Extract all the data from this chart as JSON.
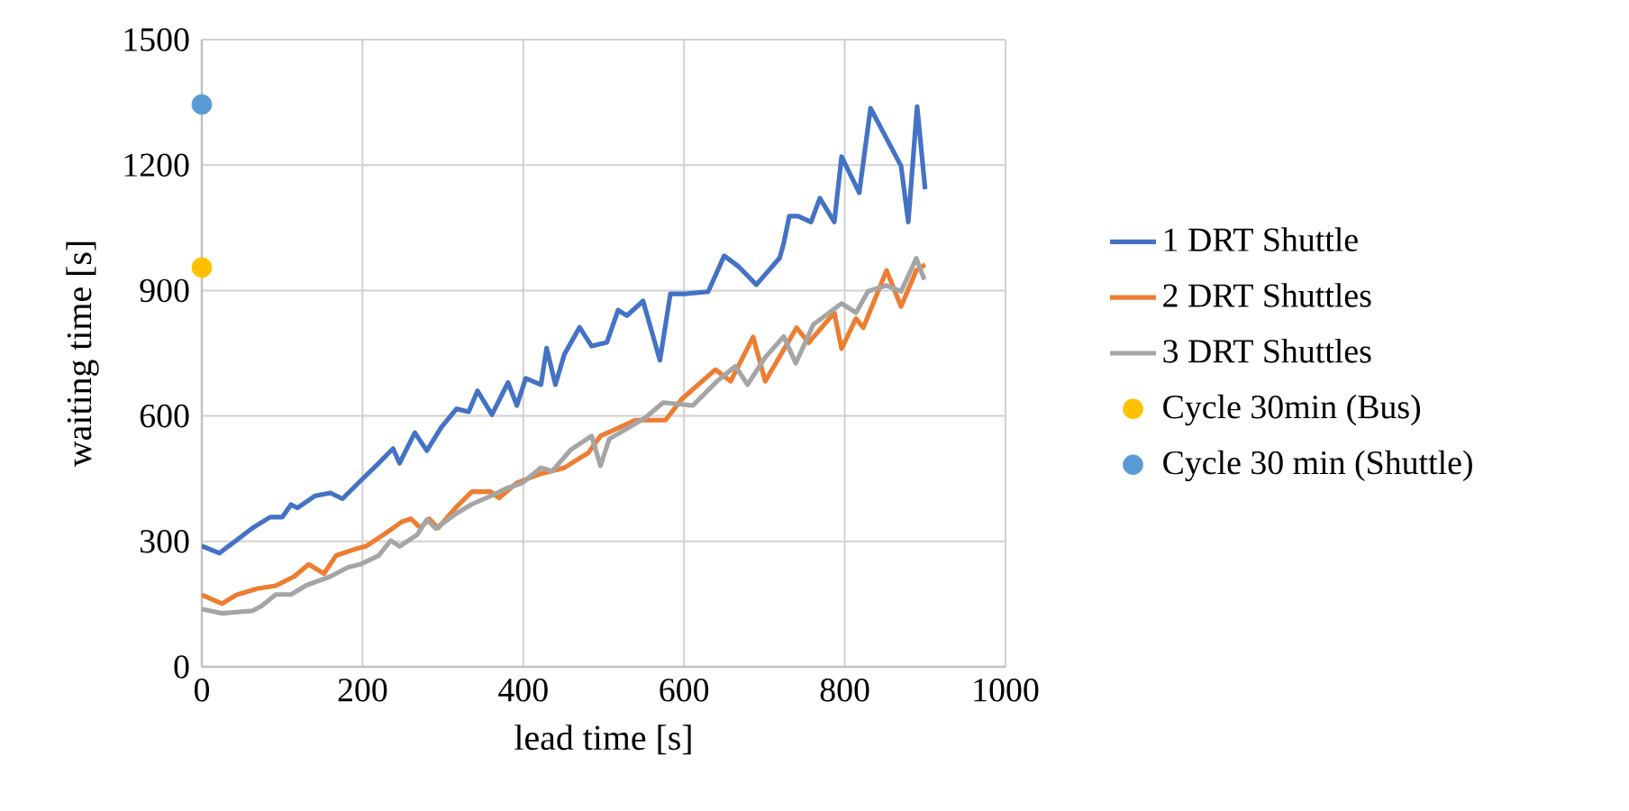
{
  "chart_data": {
    "type": "line",
    "xlabel": "lead time [s]",
    "ylabel": "waiting time [s]",
    "xlim": [
      0,
      1000
    ],
    "ylim": [
      0,
      1500
    ],
    "xticks": [
      0,
      200,
      400,
      600,
      800,
      1000
    ],
    "yticks": [
      0,
      300,
      600,
      900,
      1200,
      1500
    ],
    "grid": true,
    "legend": "right",
    "line_style": "solid",
    "series": [
      {
        "name": "1 DRT Shuttle",
        "color": "#4472c4",
        "x": [
          0,
          22,
          63,
          85,
          100,
          111,
          119,
          141,
          160,
          175,
          197,
          220,
          238,
          246,
          265,
          280,
          298,
          317,
          332,
          343,
          361,
          381,
          392,
          403,
          422,
          429,
          440,
          451,
          470,
          485,
          504,
          518,
          529,
          549,
          570,
          583,
          601,
          630,
          650,
          668,
          690,
          719,
          724,
          731,
          742,
          758,
          769,
          787,
          796,
          818,
          832,
          870,
          879,
          890,
          900
        ],
        "values": [
          289,
          272,
          332,
          358,
          358,
          388,
          380,
          409,
          416,
          402,
          444,
          487,
          522,
          487,
          560,
          517,
          573,
          617,
          610,
          660,
          603,
          680,
          625,
          690,
          675,
          762,
          675,
          747,
          812,
          767,
          776,
          853,
          840,
          875,
          733,
          892,
          892,
          897,
          983,
          957,
          914,
          978,
          1013,
          1078,
          1078,
          1064,
          1121,
          1064,
          1220,
          1134,
          1336,
          1198,
          1064,
          1340,
          1142
        ]
      },
      {
        "name": "2 DRT Shuttles",
        "color": "#ed7d31",
        "x": [
          0,
          25,
          43,
          69,
          92,
          115,
          133,
          152,
          167,
          190,
          204,
          227,
          249,
          260,
          272,
          283,
          294,
          317,
          336,
          359,
          370,
          392,
          422,
          451,
          481,
          496,
          540,
          577,
          597,
          639,
          658,
          686,
          701,
          740,
          755,
          787,
          796,
          814,
          823,
          852,
          870,
          889,
          900
        ],
        "values": [
          172,
          151,
          172,
          187,
          194,
          216,
          245,
          223,
          266,
          281,
          288,
          317,
          347,
          354,
          332,
          354,
          332,
          383,
          419,
          419,
          404,
          440,
          462,
          476,
          512,
          552,
          590,
          590,
          640,
          711,
          683,
          789,
          683,
          811,
          775,
          847,
          761,
          833,
          811,
          948,
          862,
          948,
          962
        ]
      },
      {
        "name": "3 DRT Shuttles",
        "color": "#a5a5a5",
        "x": [
          0,
          25,
          63,
          74,
          92,
          111,
          130,
          160,
          182,
          197,
          220,
          235,
          246,
          268,
          280,
          291,
          317,
          336,
          361,
          377,
          399,
          422,
          436,
          459,
          485,
          496,
          507,
          552,
          574,
          611,
          641,
          664,
          679,
          701,
          724,
          739,
          761,
          796,
          814,
          829,
          852,
          870,
          889,
          899
        ],
        "values": [
          138,
          128,
          134,
          145,
          173,
          173,
          195,
          216,
          238,
          245,
          266,
          302,
          288,
          316,
          352,
          331,
          367,
          389,
          410,
          425,
          440,
          476,
          468,
          519,
          552,
          481,
          545,
          596,
          632,
          625,
          683,
          719,
          675,
          740,
          790,
          726,
          819,
          869,
          847,
          898,
          912,
          898,
          977,
          926
        ]
      },
      {
        "name": "Cycle 30min (Bus)",
        "type": "scatter",
        "marker": "circle",
        "color": "#ffc000",
        "x": [
          0
        ],
        "values": [
          955
        ]
      },
      {
        "name": "Cycle 30 min (Shuttle)",
        "type": "scatter",
        "marker": "circle",
        "color": "#5b9bd5",
        "x": [
          0
        ],
        "values": [
          1345
        ]
      }
    ]
  }
}
